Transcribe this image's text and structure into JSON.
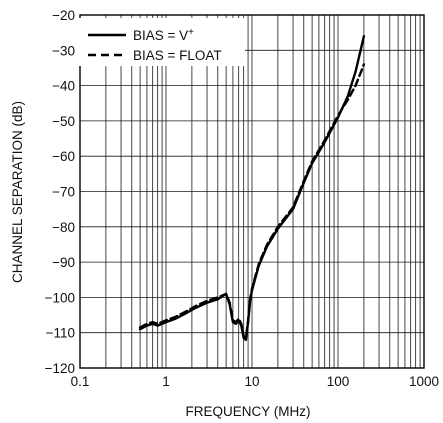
{
  "chart_data": {
    "type": "line",
    "title": "",
    "xlabel": "FREQUENCY (MHz)",
    "ylabel": "CHANNEL SEPARATION (dB)",
    "xscale": "log",
    "xlim": [
      0.1,
      1000
    ],
    "ylim": [
      -120,
      -20
    ],
    "x_ticks": [
      0.1,
      1,
      10,
      100,
      1000
    ],
    "x_tick_labels": [
      "0.1",
      "1",
      "10",
      "100",
      "1000"
    ],
    "y_ticks": [
      -20,
      -30,
      -40,
      -50,
      -60,
      -70,
      -80,
      -90,
      -100,
      -110,
      -120
    ],
    "y_tick_labels": [
      "−20",
      "−30",
      "−40",
      "−50",
      "−60",
      "−70",
      "−80",
      "−90",
      "−100",
      "−110",
      "−120"
    ],
    "grid": true,
    "legend_position": "top-left",
    "series": [
      {
        "name": "BIAS = V+",
        "label_main": "BIAS = V",
        "label_sup": "+",
        "style": "solid",
        "color": "#000000",
        "x": [
          0.5,
          0.6,
          0.7,
          0.8,
          1.0,
          1.3,
          1.7,
          2.2,
          3.0,
          4.0,
          5.0,
          5.5,
          6.0,
          6.5,
          7.0,
          7.5,
          8.0,
          8.5,
          9.0,
          9.5,
          10,
          12,
          15,
          20,
          30,
          40,
          50,
          70,
          100,
          130,
          160,
          200
        ],
        "y": [
          -109,
          -108,
          -107.5,
          -108,
          -107,
          -106,
          -104.5,
          -103,
          -101.5,
          -100.5,
          -99,
          -102,
          -107,
          -107.5,
          -106.5,
          -108,
          -111.5,
          -112,
          -107,
          -101,
          -98,
          -91,
          -85.5,
          -80.5,
          -75,
          -67.5,
          -62,
          -56,
          -49,
          -43,
          -36,
          -26
        ]
      },
      {
        "name": "BIAS = FLOAT",
        "label_main": "BIAS = FLOAT",
        "style": "dashed",
        "color": "#000000",
        "x": [
          0.5,
          0.6,
          0.7,
          0.8,
          1.0,
          1.3,
          1.7,
          2.2,
          3.0,
          4.0,
          5.0,
          5.5,
          6.0,
          6.5,
          7.0,
          7.5,
          8.0,
          8.5,
          9.0,
          9.5,
          10,
          12,
          15,
          20,
          30,
          40,
          50,
          70,
          100,
          130,
          160,
          200
        ],
        "y": [
          -108.5,
          -107.5,
          -107,
          -107.5,
          -106.5,
          -105.5,
          -104,
          -102.5,
          -101,
          -100,
          -99,
          -101.5,
          -106.5,
          -107,
          -106,
          -107.5,
          -111,
          -111.5,
          -106.5,
          -100.5,
          -97.5,
          -90.5,
          -85,
          -80,
          -74.5,
          -67,
          -61.5,
          -55.5,
          -48.5,
          -44,
          -40,
          -34
        ]
      }
    ]
  }
}
